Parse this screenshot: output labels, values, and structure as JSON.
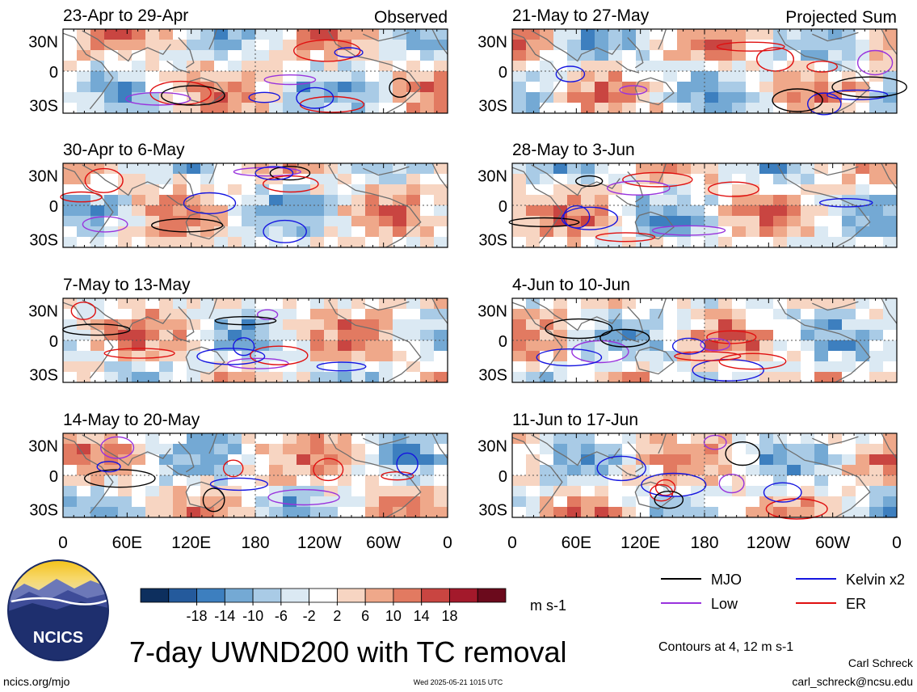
{
  "figure": {
    "title": "7-day UWND200 with TC removal",
    "site": "ncics.org/mjo",
    "timestamp": "Wed 2025-05-21 1015 UTC",
    "author": "Carl Schreck",
    "email": "carl_schreck@ncsu.edu",
    "logo_text": "NCICS",
    "units": "m s-1",
    "contour_note": "Contours at 4, 12 m s-1"
  },
  "chart_data": {
    "type": "heatmap",
    "variable": "200-hPa zonal wind anomaly, 7-day mean",
    "x_ticks": [
      "0",
      "60E",
      "120E",
      "180",
      "120W",
      "60W",
      "0"
    ],
    "y_ticks": [
      "30N",
      "0",
      "30S"
    ],
    "lon_range": [
      0,
      360
    ],
    "lat_range": [
      -40,
      40
    ],
    "colorbar": {
      "labels": [
        "-18",
        "-14",
        "-10",
        "-6",
        "-2",
        "2",
        "6",
        "10",
        "14",
        "18"
      ],
      "colors": [
        "#0d2f5e",
        "#245a9c",
        "#3d7fbf",
        "#74a9d4",
        "#a9cbe6",
        "#dbe9f3",
        "#ffffff",
        "#f7d5c2",
        "#efa88a",
        "#e27a61",
        "#c94541",
        "#a3192b",
        "#6b0a1c"
      ]
    },
    "contour_legend": [
      {
        "name": "MJO",
        "color": "#000000"
      },
      {
        "name": "Kelvin x2",
        "color": "#1515e0"
      },
      {
        "name": "Low",
        "color": "#9933dd"
      },
      {
        "name": "ER",
        "color": "#e01010"
      }
    ],
    "panels": [
      {
        "label": "23-Apr to 29-Apr",
        "tag": "Observed"
      },
      {
        "label": "30-Apr to 6-May",
        "tag": ""
      },
      {
        "label": "7-May to 13-May",
        "tag": ""
      },
      {
        "label": "14-May to 20-May",
        "tag": ""
      },
      {
        "label": "21-May to 27-May",
        "tag": "Projected Sum"
      },
      {
        "label": "28-May to 3-Jun",
        "tag": ""
      },
      {
        "label": "4-Jun to 10-Jun",
        "tag": ""
      },
      {
        "label": "11-Jun to 17-Jun",
        "tag": ""
      }
    ]
  }
}
